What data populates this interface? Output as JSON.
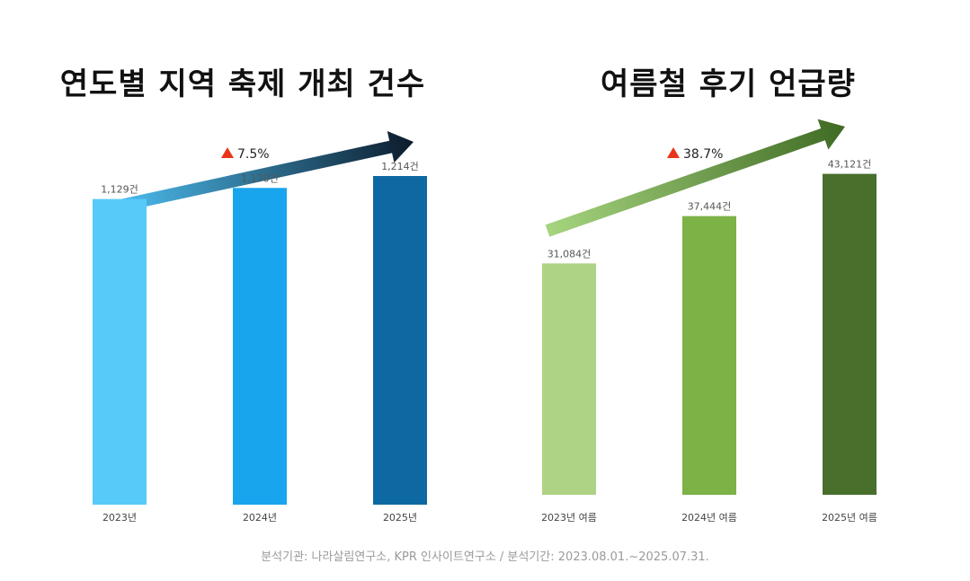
{
  "footer": "분석기관: 나라살림연구소, KPR 인사이트연구소 / 분석기간: 2023.08.01.~2025.07.31.",
  "chart_data": [
    {
      "type": "bar",
      "title": "연도별 지역 축제 개최 건수",
      "categories": [
        "2023년",
        "2024년",
        "2025년"
      ],
      "values": [
        1129,
        1170,
        1214
      ],
      "value_labels": [
        "1,129건",
        "1,170건",
        "1,214건"
      ],
      "growth_label": "7.5%",
      "colors": [
        "#57CAFA",
        "#19A5EE",
        "#0E69A2"
      ],
      "arrow_colors": [
        "#4FC3F7",
        "#0C1B2B"
      ],
      "ylim": [
        0,
        1350
      ]
    },
    {
      "type": "bar",
      "title": "여름철 후기 언급량",
      "categories": [
        "2023년 여름",
        "2024년 여름",
        "2025년 여름"
      ],
      "values": [
        31084,
        37444,
        43121
      ],
      "value_labels": [
        "31,084건",
        "37,444건",
        "43,121건"
      ],
      "growth_label": "38.7%",
      "colors": [
        "#AED384",
        "#7DB247",
        "#486F2C"
      ],
      "arrow_colors": [
        "#A6D57F",
        "#3F6A24"
      ],
      "ylim": [
        0,
        52000
      ]
    }
  ]
}
